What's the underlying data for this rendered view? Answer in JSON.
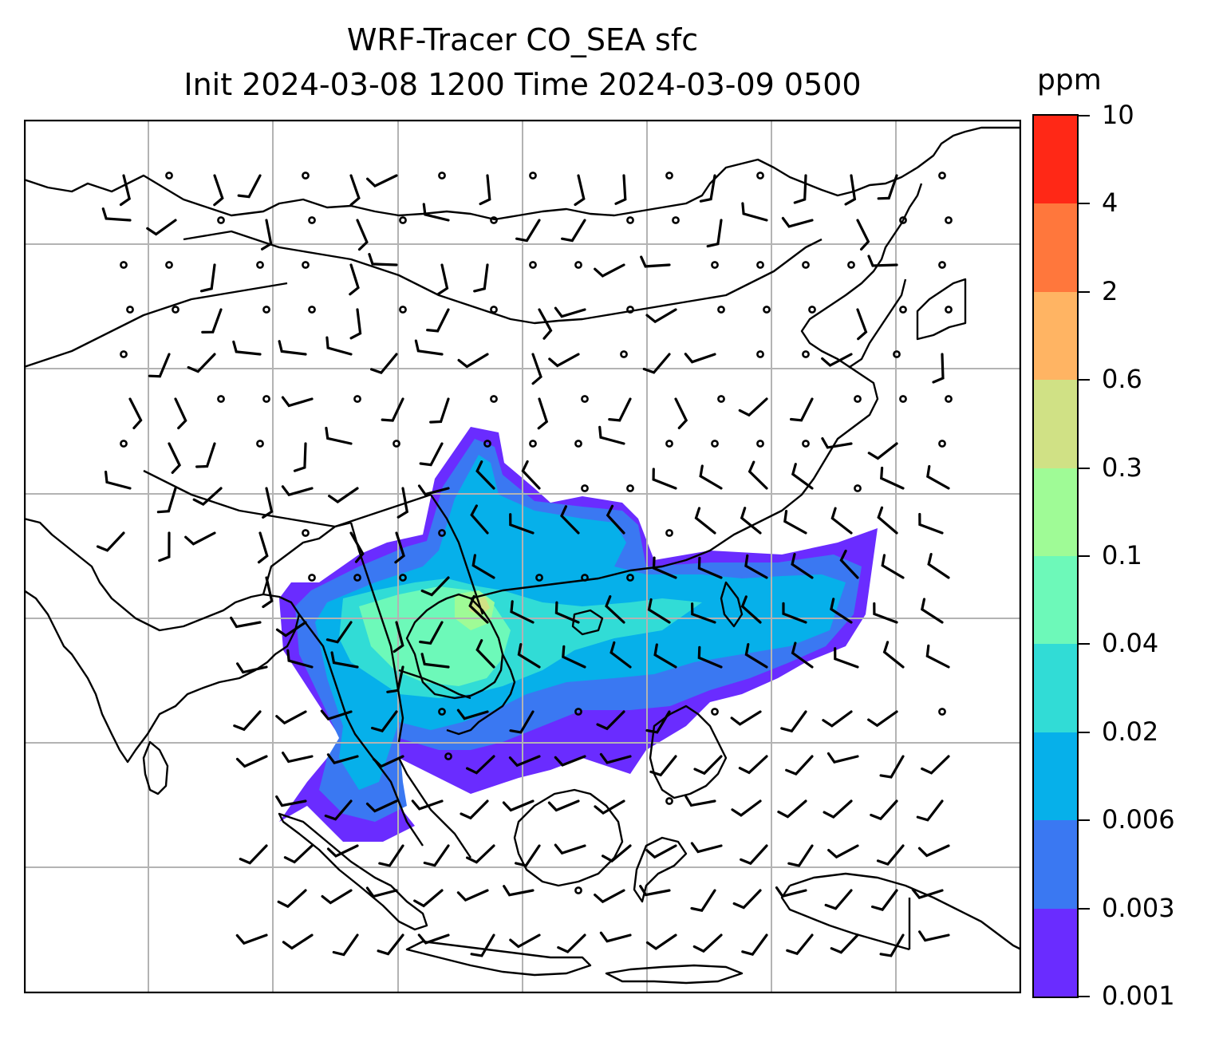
{
  "figure": {
    "title_line1": "WRF-Tracer CO_SEA sfc",
    "title_line2": "Init 2024-03-08 1200 Time 2024-03-09 0500"
  },
  "colorbar": {
    "unit": "ppm",
    "tick_labels": [
      "0.001",
      "0.003",
      "0.006",
      "0.02",
      "0.04",
      "0.1",
      "0.3",
      "0.6",
      "2",
      "4",
      "10"
    ],
    "colors": [
      "#6a2cff",
      "#3a78f2",
      "#06b0ea",
      "#31dcd6",
      "#6df9b9",
      "#9ffb96",
      "#d0e185",
      "#ffb463",
      "#ff773c",
      "#ff2816"
    ]
  },
  "map": {
    "gridlines": true,
    "coastlines": true,
    "country_borders": true,
    "wind_barbs": true,
    "calm_markers": true
  }
}
